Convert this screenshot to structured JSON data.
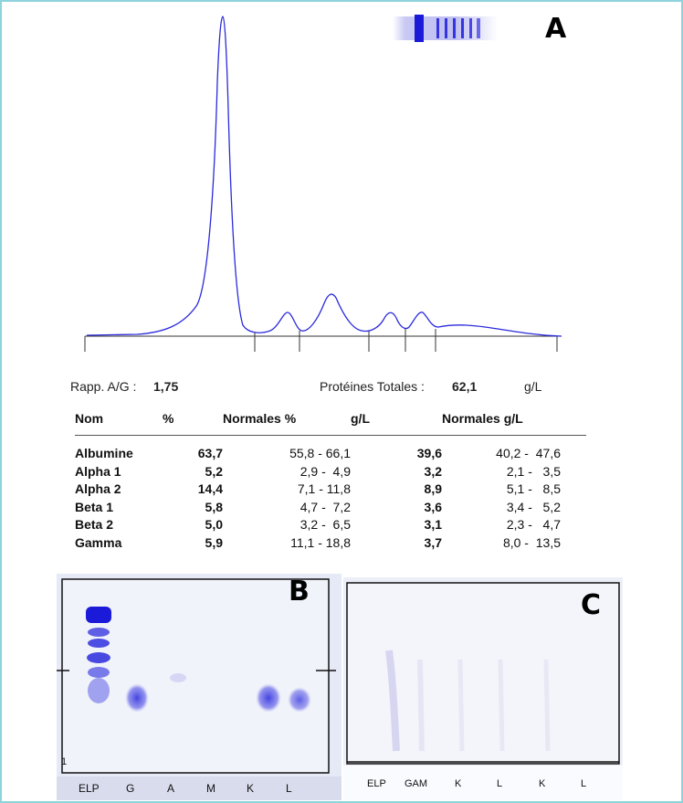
{
  "panels": {
    "a": "A",
    "b": "B",
    "c": "C"
  },
  "summary": {
    "ratio_label": "Rapp. A/G :",
    "ratio_value": "1,75",
    "total_label": "Protéines Totales :",
    "total_value": "62,1",
    "total_unit": "g/L"
  },
  "table": {
    "headers": [
      "Nom",
      "%",
      "Normales %",
      "g/L",
      "Normales g/L"
    ],
    "rows": [
      {
        "name": "Albumine",
        "pct": "63,7",
        "norm_pct": "55,8 - 66,1",
        "gl": "39,6",
        "norm_gl": "40,2 -  47,6"
      },
      {
        "name": "Alpha 1",
        "pct": "5,2",
        "norm_pct": "2,9 -  4,9",
        "gl": "3,2",
        "norm_gl": "2,1 -   3,5"
      },
      {
        "name": "Alpha 2",
        "pct": "14,4",
        "norm_pct": "7,1 - 11,8",
        "gl": "8,9",
        "norm_gl": "5,1 -   8,5"
      },
      {
        "name": "Beta 1",
        "pct": "5,8",
        "norm_pct": "4,7 -  7,2",
        "gl": "3,6",
        "norm_gl": "3,4 -   5,2"
      },
      {
        "name": "Beta 2",
        "pct": "5,0",
        "norm_pct": "3,2 -  6,5",
        "gl": "3,1",
        "norm_gl": "2,3 -   4,7"
      },
      {
        "name": "Gamma",
        "pct": "5,9",
        "norm_pct": "11,1 - 18,8",
        "gl": "3,7",
        "norm_gl": "8,0 -  13,5"
      }
    ]
  },
  "gel_b": {
    "corner_number": "1",
    "lanes": [
      "ELP",
      "G",
      "A",
      "M",
      "K",
      "L"
    ]
  },
  "gel_c": {
    "lanes": [
      "ELP",
      "GAM",
      "K",
      "L",
      "K",
      "L"
    ]
  },
  "colors": {
    "trace": "#2a2adc",
    "band": "#2020d8",
    "frame": "#8fd3dd"
  }
}
